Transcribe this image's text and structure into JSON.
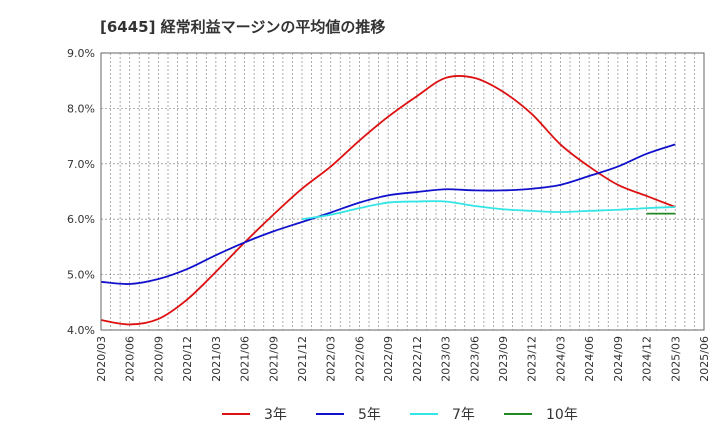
{
  "chart_data": {
    "type": "line",
    "title": "[6445]  経常利益マージンの平均値の推移",
    "xlabel": "",
    "ylabel": "",
    "x_tick_labels": [
      "2020/03",
      "2020/06",
      "2020/09",
      "2020/12",
      "2021/03",
      "2021/06",
      "2021/09",
      "2021/12",
      "2022/03",
      "2022/06",
      "2022/09",
      "2022/12",
      "2023/03",
      "2023/06",
      "2023/09",
      "2023/12",
      "2024/03",
      "2024/06",
      "2024/09",
      "2024/12",
      "2025/03",
      "2025/06"
    ],
    "y_tick_labels": [
      "4.0%",
      "5.0%",
      "6.0%",
      "7.0%",
      "8.0%",
      "9.0%"
    ],
    "ylim": [
      4.0,
      9.0
    ],
    "grid": true,
    "legend_position": "bottom",
    "series": [
      {
        "name": "3年",
        "color": "#dd1111",
        "x": [
          "2020/03",
          "2020/06",
          "2020/09",
          "2020/12",
          "2021/03",
          "2021/06",
          "2021/09",
          "2021/12",
          "2022/03",
          "2022/06",
          "2022/09",
          "2022/12",
          "2023/03",
          "2023/06",
          "2023/09",
          "2023/12",
          "2024/03",
          "2024/06",
          "2024/09",
          "2024/12",
          "2025/03"
        ],
        "values": [
          4.18,
          4.1,
          4.2,
          4.55,
          5.05,
          5.58,
          6.08,
          6.55,
          6.95,
          7.42,
          7.85,
          8.22,
          8.55,
          8.55,
          8.3,
          7.9,
          7.35,
          6.95,
          6.62,
          6.42,
          6.22
        ]
      },
      {
        "name": "5年",
        "color": "#1111cc",
        "x": [
          "2020/03",
          "2020/06",
          "2020/09",
          "2020/12",
          "2021/03",
          "2021/06",
          "2021/09",
          "2021/12",
          "2022/03",
          "2022/06",
          "2022/09",
          "2022/12",
          "2023/03",
          "2023/06",
          "2023/09",
          "2023/12",
          "2024/03",
          "2024/06",
          "2024/09",
          "2024/12",
          "2025/03"
        ],
        "values": [
          4.87,
          4.83,
          4.92,
          5.1,
          5.35,
          5.58,
          5.78,
          5.95,
          6.12,
          6.3,
          6.43,
          6.49,
          6.54,
          6.52,
          6.52,
          6.55,
          6.62,
          6.78,
          6.95,
          7.18,
          7.35
        ]
      },
      {
        "name": "7年",
        "color": "#33e5e5",
        "x": [
          "2021/12",
          "2022/03",
          "2022/06",
          "2022/09",
          "2022/12",
          "2023/03",
          "2023/06",
          "2023/09",
          "2023/12",
          "2024/03",
          "2024/06",
          "2024/09",
          "2024/12",
          "2025/03"
        ],
        "values": [
          6.0,
          6.08,
          6.2,
          6.3,
          6.32,
          6.32,
          6.24,
          6.18,
          6.15,
          6.13,
          6.15,
          6.17,
          6.2,
          6.22
        ]
      },
      {
        "name": "10年",
        "color": "#228822",
        "x": [
          "2024/12",
          "2025/03"
        ],
        "values": [
          6.1,
          6.1
        ]
      }
    ]
  }
}
